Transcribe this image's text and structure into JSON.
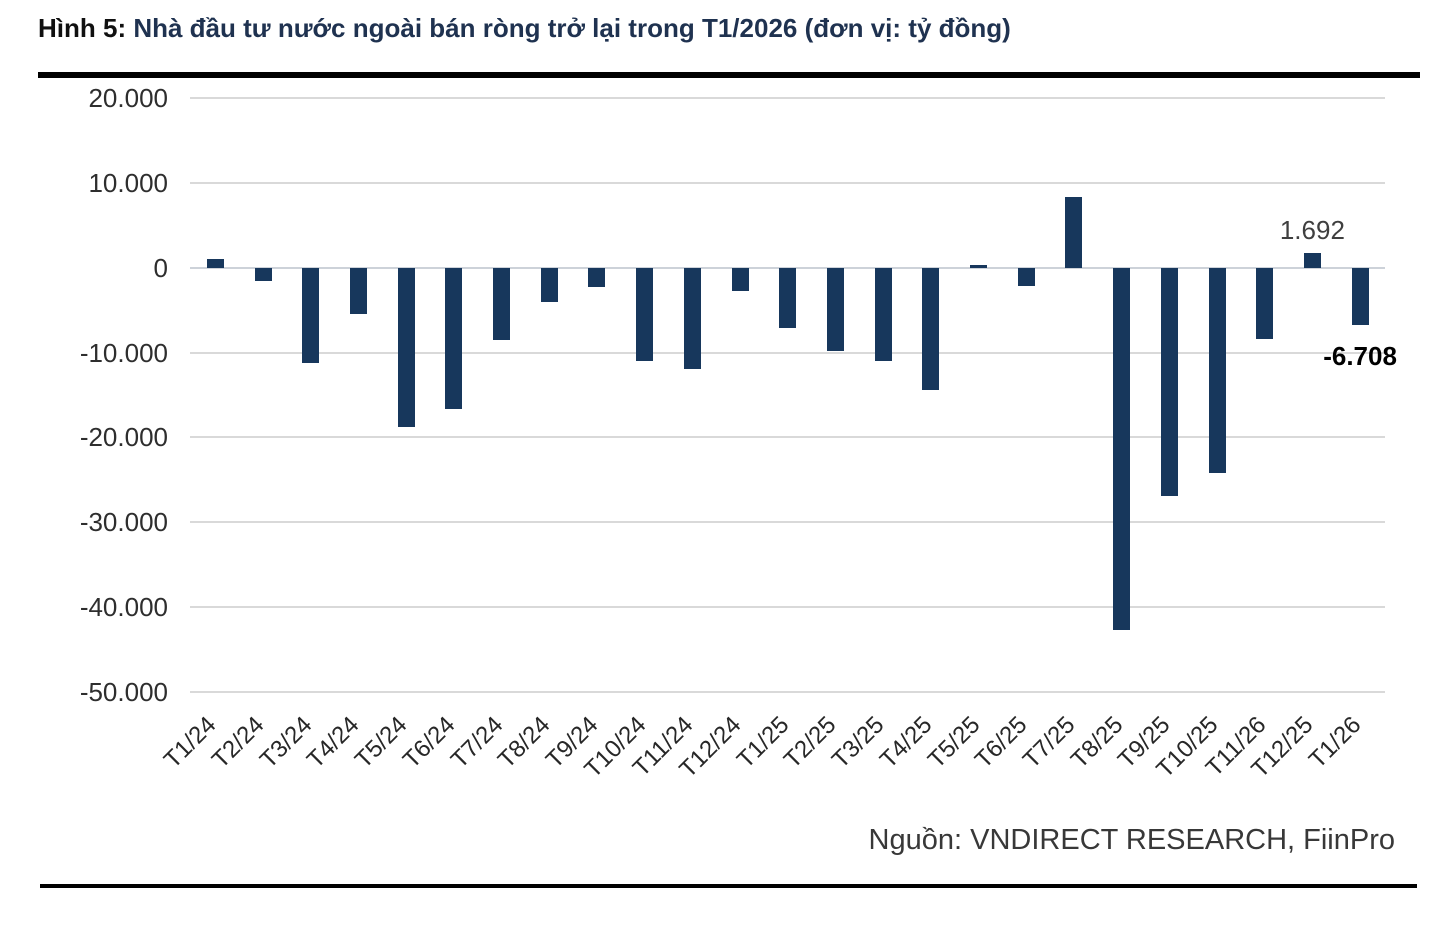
{
  "figure": {
    "title_prefix": "Hình 5:",
    "title_main": " Nhà đầu tư nước ngoài bán ròng trở lại trong T1/2026 (đơn vị: tỷ đồng)",
    "source": "Nguồn: VNDIRECT RESEARCH, FiinPro"
  },
  "chart_data": {
    "type": "bar",
    "title": "Nhà đầu tư nước ngoài bán ròng trở lại trong T1/2026",
    "unit": "tỷ đồng",
    "categories": [
      "T1/24",
      "T2/24",
      "T3/24",
      "T4/24",
      "T5/24",
      "T6/24",
      "T7/24",
      "T8/24",
      "T9/24",
      "T10/24",
      "T11/24",
      "T12/24",
      "T1/25",
      "T2/25",
      "T3/25",
      "T4/25",
      "T5/25",
      "T6/25",
      "T7/25",
      "T8/25",
      "T9/25",
      "T10/25",
      "T11/26",
      "T12/25",
      "T1/26"
    ],
    "values": [
      1000,
      -1600,
      -11200,
      -5400,
      -18800,
      -16600,
      -8500,
      -4000,
      -2300,
      -11000,
      -11900,
      -2800,
      -7100,
      -9800,
      -11000,
      -14400,
      300,
      -2100,
      8300,
      -42700,
      -26900,
      -24200,
      -8400,
      1692,
      -6708
    ],
    "data_labels": [
      {
        "category": "T12/25",
        "text": "1.692",
        "bold": false
      },
      {
        "category": "T1/26",
        "text": "-6.708",
        "bold": true
      }
    ],
    "y_ticks": [
      20000,
      10000,
      0,
      -10000,
      -20000,
      -30000,
      -40000,
      -50000
    ],
    "y_tick_labels": [
      "20.000",
      "10.000",
      "0",
      "-10.000",
      "-20.000",
      "-30.000",
      "-40.000",
      "-50.000"
    ],
    "ylim": [
      -50000,
      20000
    ],
    "grid": "horizontal",
    "legend": "none",
    "bar_color": "#17375C",
    "gridline_color": "#D9D9D9"
  }
}
